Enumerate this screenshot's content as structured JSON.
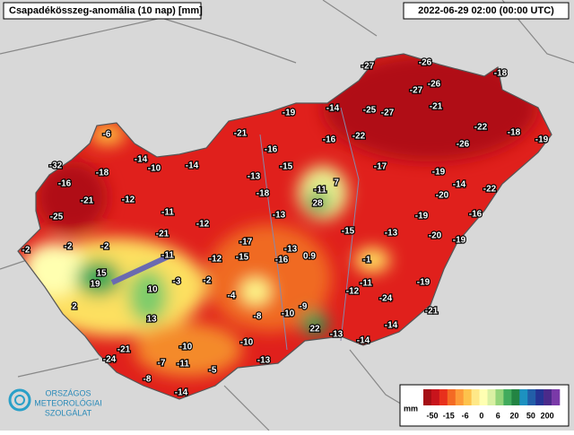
{
  "header": {
    "title": "Csapadékösszeg-anomália (10 nap) [mm]",
    "timestamp": "2022-06-29 02:00 (00:00 UTC)"
  },
  "stations": [
    -27,
    -26,
    -18,
    -27,
    -26,
    -25,
    -27,
    -21,
    -19,
    -14,
    -22,
    -18,
    -19,
    -6,
    -21,
    -16,
    -22,
    -26,
    -16,
    -14,
    -10,
    -14,
    -32,
    -18,
    -13,
    -15,
    -17,
    -19,
    -16,
    -21,
    -12,
    -18,
    -11,
    7,
    28,
    -14,
    -22,
    -20,
    -25,
    -11,
    -12,
    -13,
    -19,
    -16,
    -15,
    -13,
    -20,
    -19,
    -2,
    -2,
    -21,
    -17,
    -13,
    0.9,
    -1,
    -11,
    -12,
    -15,
    -16,
    -2,
    15,
    -3,
    -2,
    -11,
    -19,
    19,
    10,
    -4,
    -12,
    -24,
    2,
    -9,
    -10,
    -8,
    -21,
    13,
    22,
    -13,
    -14,
    -14,
    -21,
    -10,
    -10,
    -24,
    -7,
    -11,
    -13,
    -5,
    -8,
    -14
  ],
  "legend": {
    "unit": "mm",
    "labels": [
      -50,
      -15,
      -6,
      0,
      6,
      20,
      50,
      200
    ]
  },
  "logo": {
    "line1": "ORSZÁGOS",
    "line2": "METEOROLÓGIAI",
    "line3": "SZOLGÁLAT"
  }
}
